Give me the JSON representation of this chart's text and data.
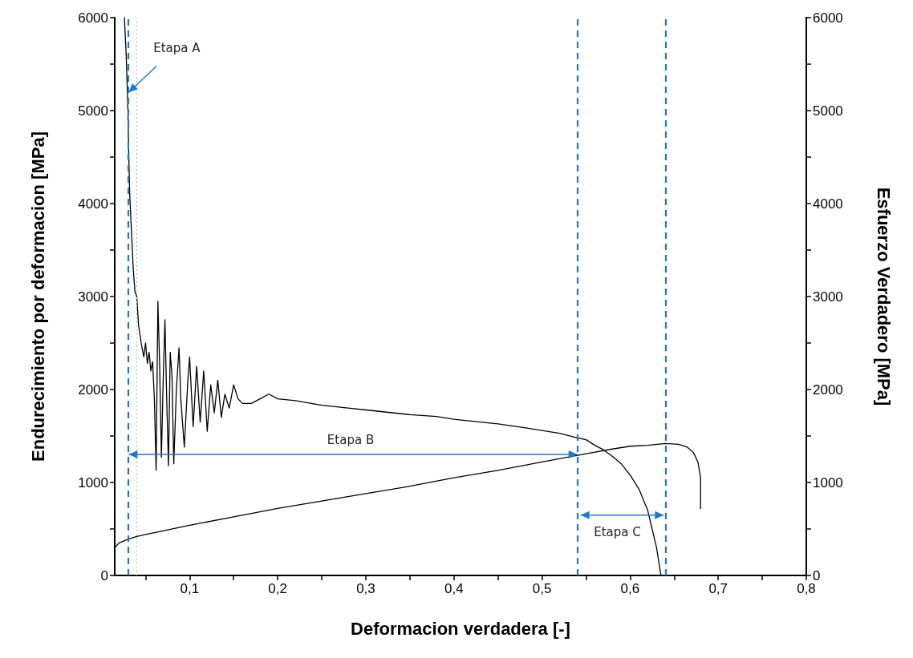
{
  "chart_data": {
    "type": "line",
    "xlabel": "Deformacion verdadera [-]",
    "ylabel": "Endurecimiento por deformacion [MPa]",
    "y2label": "Esfuerzo Verdadero [MPa]",
    "xlim": [
      0.015,
      0.8
    ],
    "xticks": [
      {
        "value": 0.05,
        "label": null
      },
      {
        "value": 0.1,
        "label": "0,1"
      },
      {
        "value": 0.15,
        "label": null
      },
      {
        "value": 0.2,
        "label": "0,2"
      },
      {
        "value": 0.25,
        "label": null
      },
      {
        "value": 0.3,
        "label": "0,3"
      },
      {
        "value": 0.35,
        "label": null
      },
      {
        "value": 0.4,
        "label": "0,4"
      },
      {
        "value": 0.45,
        "label": null
      },
      {
        "value": 0.5,
        "label": "0,5"
      },
      {
        "value": 0.55,
        "label": null
      },
      {
        "value": 0.6,
        "label": "0,6"
      },
      {
        "value": 0.65,
        "label": null
      },
      {
        "value": 0.7,
        "label": "0,7"
      },
      {
        "value": 0.75,
        "label": null
      },
      {
        "value": 0.8,
        "label": "0,8"
      }
    ],
    "ylim": [
      0,
      6000
    ],
    "yticks": [
      0,
      {
        "value": 500,
        "label": null
      },
      1000,
      {
        "value": 1500,
        "label": null
      },
      2000,
      {
        "value": 2500,
        "label": null
      },
      3000,
      {
        "value": 3500,
        "label": null
      },
      4000,
      {
        "value": 4500,
        "label": null
      },
      5000,
      {
        "value": 5500,
        "label": null
      },
      6000
    ],
    "y2lim": [
      0,
      6000
    ],
    "y2ticks": [
      0,
      {
        "value": 500,
        "label": null
      },
      1000,
      {
        "value": 1500,
        "label": null
      },
      2000,
      {
        "value": 2500,
        "label": null
      },
      3000,
      {
        "value": 3500,
        "label": null
      },
      4000,
      {
        "value": 4500,
        "label": null
      },
      5000,
      {
        "value": 5500,
        "label": null
      },
      6000
    ],
    "grid": false,
    "marker": "none",
    "line_style": "solid",
    "series": [
      {
        "color": "#000000",
        "x": [
          0.026,
          0.028,
          0.03,
          0.031,
          0.032,
          0.034,
          0.036,
          0.038,
          0.04,
          0.042,
          0.045,
          0.048,
          0.05,
          0.052,
          0.054,
          0.056,
          0.058,
          0.06,
          0.062,
          0.064,
          0.066,
          0.068,
          0.07,
          0.072,
          0.074,
          0.076,
          0.078,
          0.08,
          0.082,
          0.085,
          0.088,
          0.09,
          0.094,
          0.098,
          0.1,
          0.104,
          0.108,
          0.112,
          0.116,
          0.12,
          0.124,
          0.128,
          0.132,
          0.136,
          0.14,
          0.145,
          0.15,
          0.155,
          0.16,
          0.17,
          0.18,
          0.19,
          0.2,
          0.22,
          0.25,
          0.28,
          0.3,
          0.33,
          0.35,
          0.38,
          0.4,
          0.43,
          0.45,
          0.48,
          0.5,
          0.52,
          0.54,
          0.55,
          0.56,
          0.57,
          0.58,
          0.59,
          0.6,
          0.61,
          0.62,
          0.625,
          0.63,
          0.635
        ],
        "values": [
          6000,
          5600,
          5000,
          4500,
          4100,
          3700,
          3300,
          3050,
          3000,
          2700,
          2500,
          2350,
          2500,
          2280,
          2400,
          2200,
          2300,
          1900,
          1130,
          2950,
          2250,
          1270,
          2100,
          2750,
          1900,
          1180,
          2400,
          2150,
          1200,
          2000,
          2450,
          1900,
          1380,
          2100,
          2350,
          1600,
          2250,
          1650,
          2200,
          1550,
          2050,
          1750,
          2100,
          1700,
          1950,
          1800,
          2050,
          1900,
          1850,
          1850,
          1900,
          1950,
          1900,
          1880,
          1830,
          1800,
          1780,
          1750,
          1730,
          1710,
          1680,
          1650,
          1630,
          1590,
          1560,
          1530,
          1480,
          1460,
          1400,
          1350,
          1280,
          1200,
          1080,
          930,
          700,
          500,
          300,
          0
        ]
      },
      {
        "color": "#000000",
        "axis": "y2",
        "x": [
          0.015,
          0.02,
          0.025,
          0.03,
          0.04,
          0.05,
          0.07,
          0.1,
          0.15,
          0.2,
          0.25,
          0.3,
          0.35,
          0.4,
          0.45,
          0.5,
          0.55,
          0.58,
          0.6,
          0.62,
          0.64,
          0.655,
          0.665,
          0.672,
          0.677,
          0.68,
          0.68
        ],
        "values": [
          300,
          350,
          370,
          390,
          420,
          440,
          480,
          540,
          630,
          720,
          800,
          880,
          960,
          1050,
          1130,
          1220,
          1310,
          1360,
          1390,
          1400,
          1420,
          1410,
          1380,
          1320,
          1220,
          1050,
          720
        ]
      }
    ],
    "ref_lines": [
      {
        "axis": "x",
        "value": 0.029,
        "color": "#1f78c8",
        "line_style": "dashed"
      },
      {
        "axis": "x",
        "value": 0.038,
        "color": "#8cc3ec",
        "line_style": "dotted"
      },
      {
        "axis": "x",
        "value": 0.542,
        "color": "#1f78c8",
        "line_style": "dashed"
      },
      {
        "axis": "x",
        "value": 0.64,
        "color": "#1f78c8",
        "line_style": "dashed"
      }
    ],
    "annotations": [
      "Etapa A",
      "Etapa B",
      "Etapa C"
    ]
  }
}
